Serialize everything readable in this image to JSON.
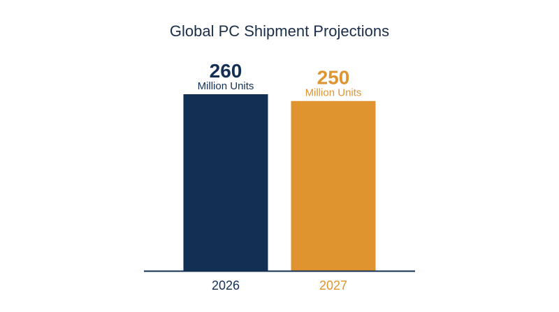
{
  "chart_data": {
    "type": "bar",
    "title": "Global PC Shipment Projections",
    "categories": [
      "2026",
      "2027"
    ],
    "values": [
      260,
      250
    ],
    "value_labels": [
      "260",
      "250"
    ],
    "unit_label": "Million Units",
    "colors": [
      "#132f54",
      "#df9430"
    ],
    "baseline_color": "#132f54",
    "ylim": [
      0,
      260
    ],
    "xlabel": "",
    "ylabel": "",
    "grid": false,
    "legend": "none"
  }
}
